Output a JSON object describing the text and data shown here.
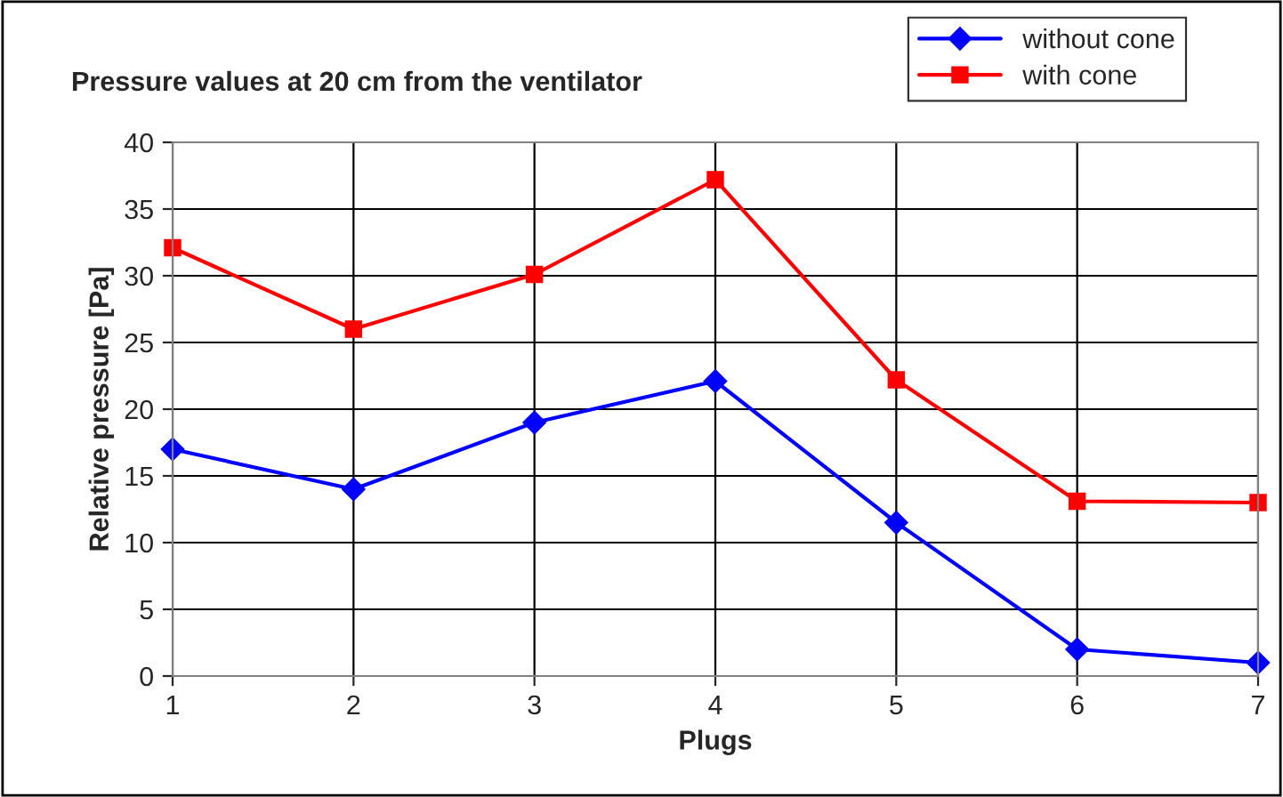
{
  "chart_data": {
    "type": "line",
    "title": "Pressure values at 20 cm from the ventilator",
    "xlabel": "Plugs",
    "ylabel": "Relative pressure [Pa]",
    "x": [
      1,
      2,
      3,
      4,
      5,
      6,
      7
    ],
    "series": [
      {
        "name": "without cone",
        "color": "#0000ff",
        "marker": "diamond",
        "values": [
          17,
          14,
          19,
          22.1,
          11.5,
          2,
          1
        ]
      },
      {
        "name": "with cone",
        "color": "#ff0000",
        "marker": "square",
        "values": [
          32.1,
          26,
          30.1,
          37.2,
          22.2,
          13.1,
          13
        ]
      }
    ],
    "xlim": [
      1,
      7
    ],
    "xticks": [
      1,
      2,
      3,
      4,
      5,
      6,
      7
    ],
    "ylim": [
      0,
      40
    ],
    "yticks": [
      0,
      5,
      10,
      15,
      20,
      25,
      30,
      35,
      40
    ],
    "grid": true,
    "legend": "top right",
    "line_style": "solid"
  }
}
